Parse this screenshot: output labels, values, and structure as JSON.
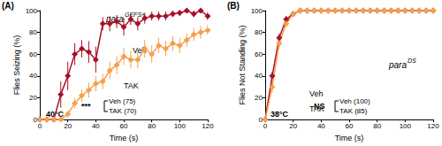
{
  "chart_data": [
    {
      "type": "line",
      "panel_label": "(A)",
      "title": "para",
      "title_superscript": "GEFS+",
      "x_label": "Time (s)",
      "y_label": "Flies Seizing (%)",
      "temperature": "40°C",
      "significance": "***",
      "xlim": [
        0,
        120
      ],
      "xticks": [
        0,
        20,
        40,
        60,
        80,
        100,
        120
      ],
      "ylim": [
        0,
        100
      ],
      "yticks": [
        0,
        20,
        40,
        60,
        80,
        100
      ],
      "grid": false,
      "marker": "diamond",
      "x": [
        0,
        5,
        10,
        15,
        20,
        25,
        30,
        35,
        40,
        45,
        50,
        55,
        60,
        65,
        70,
        75,
        80,
        85,
        90,
        95,
        100,
        105,
        110,
        115,
        120
      ],
      "series": [
        {
          "name": "Veh",
          "label": "Veh (75)",
          "color": "#a8102a",
          "values": [
            0,
            0,
            0,
            23,
            40,
            60,
            65,
            62,
            55,
            88,
            88,
            90,
            85,
            92,
            88,
            93,
            95,
            95,
            95,
            97,
            98,
            100,
            97,
            100,
            95
          ],
          "errors": [
            0,
            0,
            0,
            12,
            13,
            10,
            8,
            10,
            12,
            6,
            7,
            6,
            8,
            5,
            6,
            5,
            4,
            4,
            4,
            3,
            3,
            0,
            3,
            0,
            4
          ]
        },
        {
          "name": "TAK",
          "label": "TAK (70)",
          "color": "#f5a04a",
          "values": [
            0,
            0,
            0,
            0,
            5,
            15,
            22,
            27,
            33,
            35,
            45,
            50,
            58,
            55,
            55,
            65,
            60,
            68,
            65,
            70,
            68,
            73,
            78,
            80,
            82
          ],
          "errors": [
            0,
            0,
            0,
            0,
            3,
            5,
            6,
            7,
            7,
            7,
            8,
            8,
            8,
            8,
            8,
            8,
            8,
            7,
            7,
            7,
            7,
            6,
            6,
            6,
            5
          ]
        }
      ]
    },
    {
      "type": "line",
      "panel_label": "(B)",
      "title": "para",
      "title_superscript": "DS",
      "x_label": "Time (s)",
      "y_label": "Flies Not Standing (%)",
      "temperature": "38°C",
      "significance": "NS",
      "xlim": [
        0,
        120
      ],
      "xticks": [
        0,
        20,
        40,
        60,
        80,
        100,
        120
      ],
      "ylim": [
        0,
        100
      ],
      "yticks": [
        0,
        20,
        40,
        60,
        80,
        100
      ],
      "grid": false,
      "marker": "diamond",
      "x": [
        0,
        5,
        10,
        15,
        20,
        25,
        30,
        35,
        40,
        45,
        50,
        55,
        60,
        65,
        70,
        75,
        80,
        85,
        90,
        95,
        100,
        105,
        110,
        115,
        120
      ],
      "series": [
        {
          "name": "Veh",
          "label": "Veh (100)",
          "color": "#a8102a",
          "values": [
            0,
            40,
            75,
            92,
            97,
            100,
            100,
            100,
            100,
            100,
            100,
            100,
            100,
            100,
            100,
            100,
            100,
            100,
            100,
            100,
            100,
            100,
            100,
            100,
            100
          ],
          "errors": [
            0,
            4,
            4,
            3,
            2,
            0,
            0,
            0,
            0,
            0,
            0,
            0,
            0,
            0,
            0,
            0,
            0,
            0,
            0,
            0,
            0,
            0,
            0,
            0,
            0
          ]
        },
        {
          "name": "TAK",
          "label": "TAK (85)",
          "color": "#f5a04a",
          "values": [
            0,
            30,
            70,
            88,
            97,
            100,
            100,
            100,
            100,
            100,
            100,
            100,
            100,
            100,
            100,
            100,
            100,
            100,
            100,
            100,
            100,
            100,
            100,
            100,
            100
          ],
          "errors": [
            0,
            5,
            5,
            3,
            2,
            0,
            0,
            0,
            0,
            0,
            0,
            0,
            0,
            0,
            0,
            0,
            0,
            0,
            0,
            0,
            0,
            0,
            0,
            0,
            0
          ]
        }
      ]
    }
  ]
}
